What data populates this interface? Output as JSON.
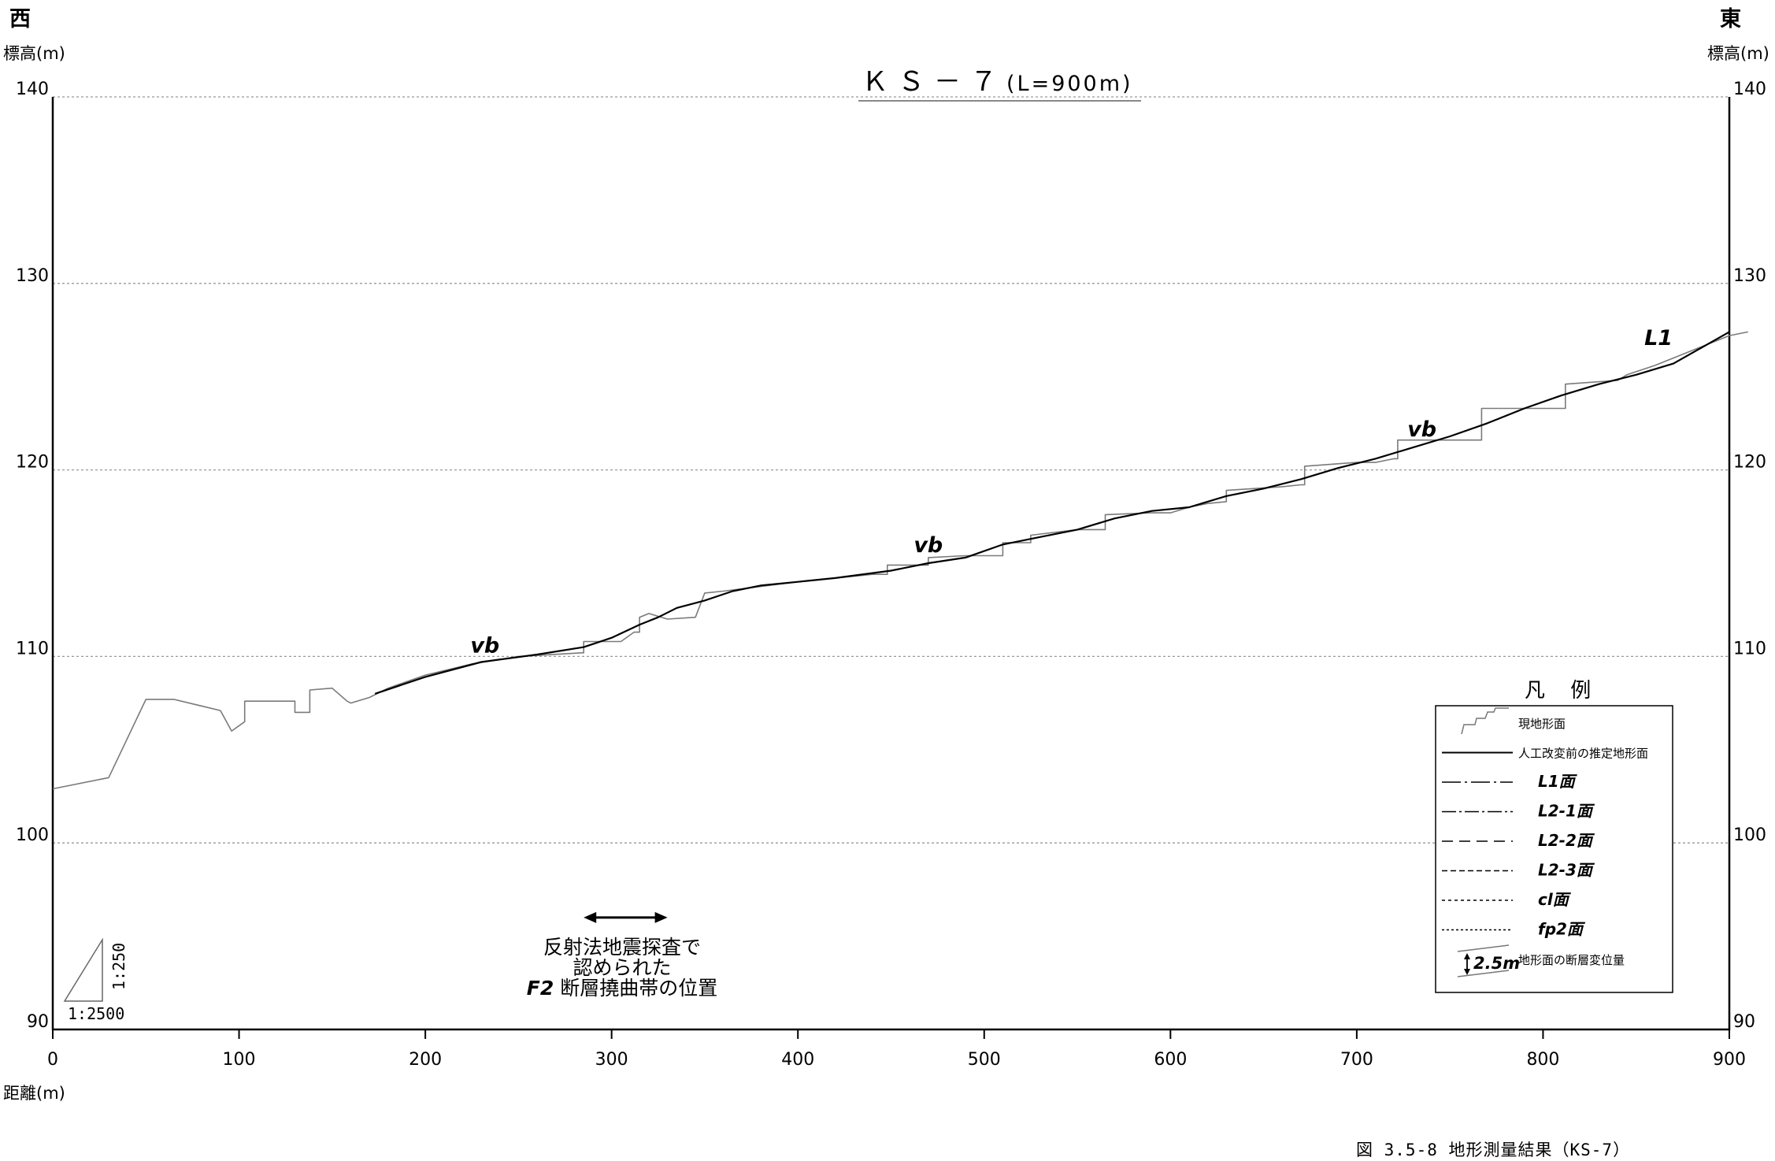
{
  "labels": {
    "west": "西",
    "east": "東",
    "elev_left": "標高(m)",
    "elev_right": "標高(m)",
    "distance": "距離(m)",
    "title_main": "ＫＳ－７",
    "title_sub": "(L=900m)",
    "caption": "図 3.5-8  地形測量結果（KS-7）",
    "annotation_line1": "反射法地震探査で",
    "annotation_line2": "認められた",
    "annotation_line3_bold": "F2",
    "annotation_line3_rest": " 断層撓曲帯の位置",
    "scale_v": "1:250",
    "scale_h": "1:2500"
  },
  "legend": {
    "title": "凡 例",
    "items": [
      {
        "label": "現地形面",
        "style": "stair"
      },
      {
        "label": "人工改変前の推定地形面",
        "style": "solid"
      },
      {
        "label": "L1面",
        "style": "dashdot"
      },
      {
        "label": "L2-1面",
        "style": "dashdot2"
      },
      {
        "label": "L2-2面",
        "style": "longdash"
      },
      {
        "label": "L2-3面",
        "style": "dash"
      },
      {
        "label": "cl面",
        "style": "dot"
      },
      {
        "label": "fp2面",
        "style": "dot2"
      },
      {
        "label": "地形面の断層変位量",
        "style": "offset",
        "sample": "2.5m"
      }
    ]
  },
  "chart_data": {
    "type": "line",
    "title": "ＫＳ－７(L=900m)",
    "xlabel": "距離(m)",
    "ylabel": "標高(m)",
    "xlim": [
      0,
      900
    ],
    "ylim": [
      90,
      140
    ],
    "xticks": [
      0,
      100,
      200,
      300,
      400,
      500,
      600,
      700,
      800,
      900
    ],
    "yticks": [
      90,
      100,
      110,
      120,
      130,
      140
    ],
    "grid": true,
    "series": [
      {
        "name": "現地形面",
        "color": "#7a7a7a",
        "x": [
          0,
          30,
          50,
          65,
          90,
          96,
          103,
          103,
          130,
          130,
          138,
          138,
          150,
          158,
          160,
          170,
          180,
          200,
          225,
          250,
          285,
          285,
          290,
          305,
          312,
          315,
          315,
          320,
          330,
          345,
          350,
          360,
          400,
          440,
          448,
          448,
          470,
          470,
          490,
          505,
          510,
          510,
          525,
          525,
          550,
          560,
          565,
          565,
          590,
          600,
          610,
          620,
          630,
          630,
          660,
          670,
          672,
          672,
          700,
          710,
          710,
          720,
          722,
          722,
          755,
          765,
          767,
          767,
          795,
          810,
          812,
          812,
          840,
          845,
          860,
          880,
          900,
          910
        ],
        "y": [
          102.9,
          103.5,
          107.7,
          107.7,
          107.1,
          106.0,
          106.5,
          107.6,
          107.6,
          107.0,
          107.0,
          108.2,
          108.3,
          107.6,
          107.5,
          107.8,
          108.3,
          109.0,
          109.6,
          110.0,
          110.2,
          110.8,
          110.8,
          110.8,
          111.3,
          111.3,
          112.1,
          112.3,
          112.0,
          112.1,
          113.4,
          113.5,
          114.0,
          114.4,
          114.4,
          114.9,
          114.9,
          115.3,
          115.4,
          115.4,
          115.4,
          116.1,
          116.1,
          116.5,
          116.8,
          116.8,
          116.8,
          117.6,
          117.7,
          117.7,
          118.0,
          118.2,
          118.3,
          118.9,
          119.1,
          119.2,
          119.2,
          120.2,
          120.4,
          120.4,
          120.4,
          120.6,
          120.6,
          121.6,
          121.6,
          121.6,
          121.6,
          123.3,
          123.3,
          123.3,
          123.3,
          124.6,
          124.8,
          125.1,
          125.6,
          126.4,
          127.2,
          127.4
        ]
      },
      {
        "name": "人工改変前の推定地形面",
        "color": "#000000",
        "x": [
          173,
          200,
          230,
          260,
          285,
          300,
          315,
          325,
          335,
          350,
          365,
          380,
          400,
          420,
          450,
          470,
          490,
          510,
          530,
          550,
          570,
          590,
          610,
          630,
          650,
          670,
          690,
          710,
          730,
          750,
          770,
          790,
          810,
          830,
          850,
          870,
          900
        ],
        "y": [
          108.0,
          108.9,
          109.7,
          110.1,
          110.5,
          111.0,
          111.7,
          112.1,
          112.6,
          113.0,
          113.5,
          113.8,
          114.0,
          114.2,
          114.6,
          115.0,
          115.3,
          116.0,
          116.4,
          116.8,
          117.4,
          117.8,
          118.0,
          118.6,
          119.0,
          119.5,
          120.1,
          120.6,
          121.2,
          121.8,
          122.5,
          123.3,
          124.0,
          124.6,
          125.1,
          125.7,
          127.4
        ]
      }
    ],
    "annotations": [
      {
        "text": "vb",
        "x": 232,
        "y": 110.2
      },
      {
        "text": "vb",
        "x": 470,
        "y": 115.6
      },
      {
        "text": "vb",
        "x": 735,
        "y": 121.8
      },
      {
        "text": "L1",
        "x": 862,
        "y": 126.7
      }
    ],
    "range_arrow": {
      "x_from": 285,
      "x_to": 330,
      "y": 96.0
    }
  }
}
